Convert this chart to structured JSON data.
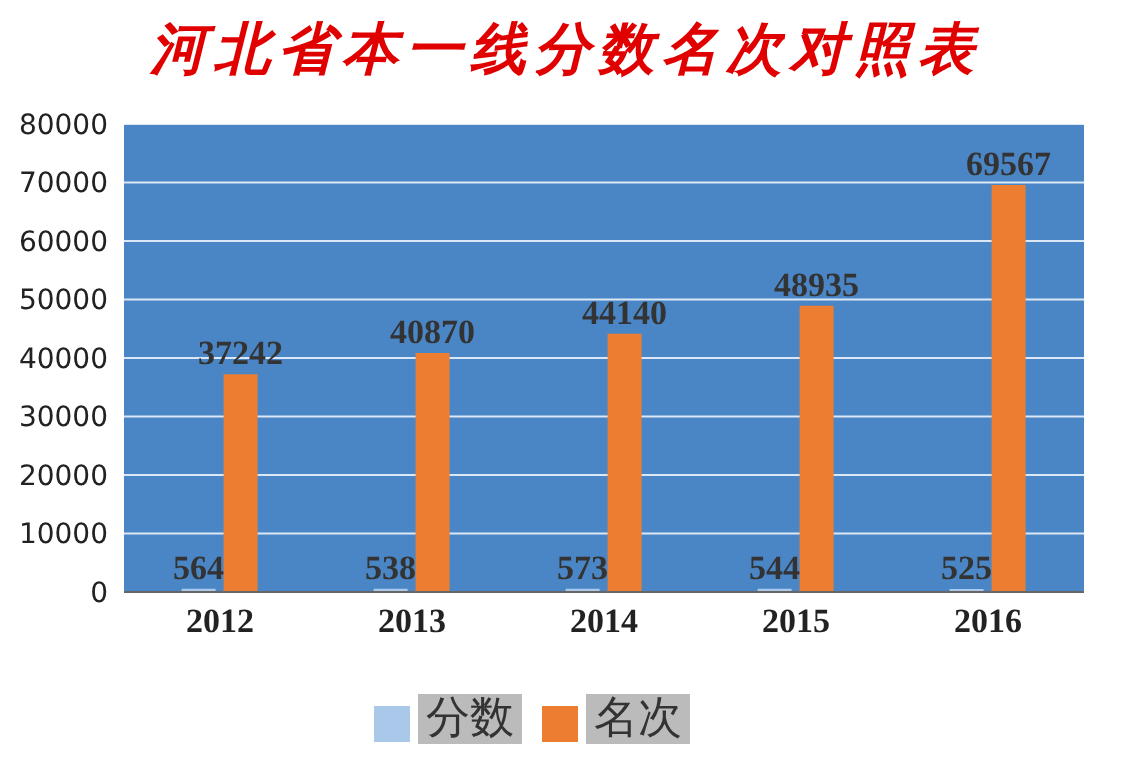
{
  "chart_data": {
    "type": "bar",
    "title": "河北省本一线分数名次对照表",
    "categories": [
      "2012",
      "2013",
      "2014",
      "2015",
      "2016"
    ],
    "series": [
      {
        "name": "分数",
        "color": "#a9c8ea",
        "values": [
          564,
          538,
          573,
          544,
          525
        ]
      },
      {
        "name": "名次",
        "color": "#ed7d31",
        "values": [
          37242,
          40870,
          44140,
          48935,
          69567
        ]
      }
    ],
    "ylim": [
      0,
      80000
    ],
    "yticks": [
      0,
      10000,
      20000,
      30000,
      40000,
      50000,
      60000,
      70000,
      80000
    ],
    "grid": "y",
    "legend": "bottom",
    "data_labels": true
  }
}
